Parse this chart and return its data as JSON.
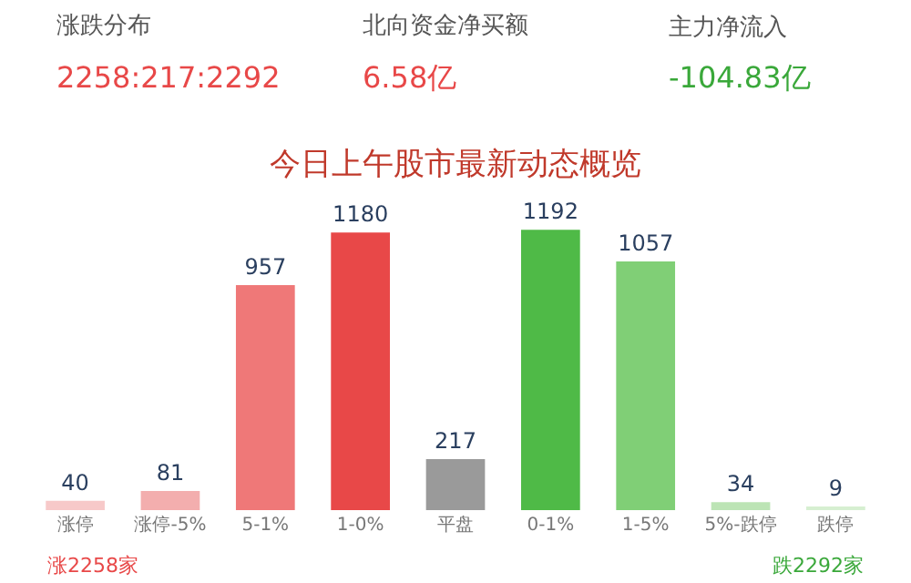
{
  "chart_data": {
    "type": "bar",
    "title": "今日上午股市最新动态概览",
    "categories": [
      "涨停",
      "涨停-5%",
      "5-1%",
      "1-0%",
      "平盘",
      "0-1%",
      "1-5%",
      "5%-跌停",
      "跌停"
    ],
    "values": [
      40,
      81,
      957,
      1180,
      217,
      1192,
      1057,
      34,
      9
    ],
    "colors": [
      "#f7c9c9",
      "#f3aeae",
      "#ef7878",
      "#e84848",
      "#9a9a9a",
      "#4fba47",
      "#80cf76",
      "#bce4b5",
      "#d6efd1"
    ],
    "data_labels": true,
    "legend": false,
    "annotations": [
      "涨跌分布",
      "北向资金净买额",
      "主力净流入",
      "2258:217:2292",
      "6.58亿",
      "-104.83亿",
      "涨2258家",
      "跌2292家"
    ]
  }
}
